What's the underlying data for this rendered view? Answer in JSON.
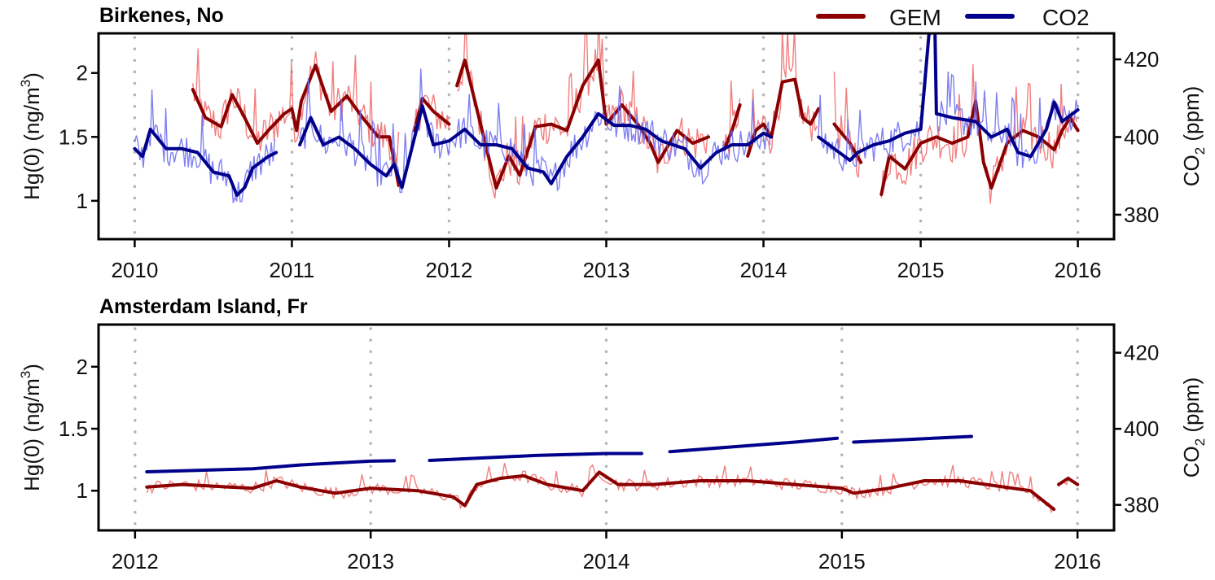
{
  "legend": {
    "gem": "GEM",
    "co2": "CO2",
    "gem_color": "#8b0000",
    "co2_color": "#00008b"
  },
  "chart_data": [
    {
      "type": "line",
      "title": "Birkenes, No",
      "ylabel": "Hg(0) (ng/m",
      "ylabel_sup": "3",
      "ylabel_end": ")",
      "y2label": "CO",
      "y2label_sub": "2",
      "y2label_end": " (ppm)",
      "xlim": [
        2009.77,
        2016.23
      ],
      "ylim": [
        0.7,
        2.31
      ],
      "y2lim": [
        373.7,
        426.7
      ],
      "x_ticks": [
        2010,
        2011,
        2012,
        2013,
        2014,
        2015,
        2016
      ],
      "x_tick_labels": [
        "2010",
        "2011",
        "2012",
        "2013",
        "2014",
        "2015",
        "2016"
      ],
      "y_ticks": [
        1,
        1.5,
        2
      ],
      "y_tick_labels": [
        "1",
        "1.5",
        "2"
      ],
      "y2_ticks": [
        380,
        400,
        420
      ],
      "y2_tick_labels": [
        "380",
        "400",
        "420"
      ],
      "grid": "vertical dotted at years",
      "legend_position": "top-right",
      "series": [
        {
          "name": "GEM",
          "axis": "left",
          "raw_variability": 0.16,
          "points": [
            [
              2010.37,
              1.87
            ],
            [
              2010.45,
              1.65
            ],
            [
              2010.55,
              1.58
            ],
            [
              2010.62,
              1.83
            ],
            [
              2010.7,
              1.65
            ],
            [
              2010.78,
              1.45
            ],
            [
              2010.85,
              1.55
            ],
            [
              2010.95,
              1.68
            ],
            [
              2011.0,
              1.72
            ],
            [
              2011.03,
              1.55
            ],
            [
              2011.06,
              1.78
            ],
            [
              2011.15,
              2.06
            ],
            [
              2011.25,
              1.7
            ],
            [
              2011.35,
              1.82
            ],
            [
              2011.45,
              1.65
            ],
            [
              2011.55,
              1.5
            ],
            [
              2011.62,
              1.5
            ],
            [
              2011.68,
              1.12
            ],
            null,
            [
              2011.78,
              1.55
            ],
            [
              2011.83,
              1.8
            ],
            [
              2011.9,
              1.7
            ],
            [
              2012.0,
              1.6
            ],
            null,
            [
              2012.05,
              1.9
            ],
            [
              2012.1,
              2.1
            ],
            [
              2012.2,
              1.6
            ],
            [
              2012.3,
              1.1
            ],
            [
              2012.38,
              1.35
            ],
            [
              2012.45,
              1.2
            ],
            [
              2012.55,
              1.58
            ],
            [
              2012.65,
              1.6
            ],
            [
              2012.75,
              1.55
            ],
            [
              2012.85,
              1.9
            ],
            [
              2012.95,
              2.1
            ],
            [
              2013.0,
              1.6
            ],
            [
              2013.1,
              1.75
            ],
            [
              2013.2,
              1.6
            ],
            [
              2013.28,
              1.45
            ],
            [
              2013.33,
              1.3
            ],
            [
              2013.45,
              1.55
            ],
            [
              2013.55,
              1.45
            ],
            [
              2013.65,
              1.5
            ],
            null,
            [
              2013.75,
              1.4
            ],
            [
              2013.8,
              1.55
            ],
            [
              2013.85,
              1.75
            ],
            null,
            [
              2013.9,
              1.35
            ],
            [
              2013.95,
              1.55
            ],
            [
              2014.0,
              1.6
            ],
            [
              2014.05,
              1.5
            ],
            [
              2014.12,
              1.93
            ],
            [
              2014.2,
              1.95
            ],
            [
              2014.25,
              1.65
            ],
            [
              2014.3,
              1.6
            ],
            [
              2014.35,
              1.72
            ],
            null,
            [
              2014.45,
              1.6
            ],
            [
              2014.55,
              1.45
            ],
            [
              2014.62,
              1.3
            ],
            null,
            [
              2014.75,
              1.05
            ],
            [
              2014.8,
              1.35
            ],
            [
              2014.9,
              1.25
            ],
            [
              2015.0,
              1.45
            ],
            [
              2015.1,
              1.5
            ],
            [
              2015.2,
              1.45
            ],
            [
              2015.3,
              1.5
            ],
            [
              2015.35,
              1.78
            ],
            [
              2015.4,
              1.3
            ],
            [
              2015.45,
              1.1
            ],
            [
              2015.55,
              1.45
            ],
            [
              2015.65,
              1.55
            ],
            [
              2015.75,
              1.5
            ],
            [
              2015.85,
              1.4
            ],
            [
              2015.9,
              1.55
            ],
            [
              2015.95,
              1.65
            ],
            [
              2016.0,
              1.55
            ]
          ]
        },
        {
          "name": "CO2",
          "axis": "right",
          "raw_variability": 4.5,
          "points": [
            [
              2010.0,
              397
            ],
            [
              2010.05,
              395
            ],
            [
              2010.1,
              402
            ],
            [
              2010.2,
              397
            ],
            [
              2010.3,
              397
            ],
            [
              2010.4,
              396
            ],
            [
              2010.5,
              391
            ],
            [
              2010.6,
              390
            ],
            [
              2010.65,
              385
            ],
            [
              2010.7,
              387
            ],
            [
              2010.75,
              392
            ],
            [
              2010.85,
              395
            ],
            [
              2010.9,
              396
            ],
            null,
            [
              2011.05,
              398
            ],
            [
              2011.12,
              405
            ],
            [
              2011.2,
              398
            ],
            [
              2011.3,
              400
            ],
            [
              2011.4,
              397
            ],
            [
              2011.5,
              393
            ],
            [
              2011.6,
              390
            ],
            [
              2011.65,
              393
            ],
            [
              2011.7,
              387
            ],
            [
              2011.75,
              395
            ],
            [
              2011.83,
              408
            ],
            [
              2011.9,
              398
            ],
            [
              2012.0,
              399
            ],
            [
              2012.1,
              402
            ],
            [
              2012.2,
              398
            ],
            [
              2012.3,
              398
            ],
            [
              2012.4,
              397
            ],
            [
              2012.5,
              392
            ],
            [
              2012.6,
              391
            ],
            [
              2012.65,
              388
            ],
            [
              2012.75,
              395
            ],
            [
              2012.85,
              400
            ],
            [
              2012.95,
              406
            ],
            [
              2013.05,
              403
            ],
            [
              2013.15,
              403
            ],
            [
              2013.25,
              402
            ],
            [
              2013.35,
              399
            ],
            [
              2013.5,
              397
            ],
            [
              2013.6,
              392
            ],
            [
              2013.7,
              396
            ],
            [
              2013.8,
              398
            ],
            [
              2013.9,
              398
            ],
            [
              2014.0,
              401
            ],
            [
              2014.05,
              400
            ],
            null,
            [
              2014.35,
              400
            ],
            [
              2014.45,
              397
            ],
            [
              2014.55,
              394
            ],
            [
              2014.6,
              396
            ],
            [
              2014.7,
              398
            ],
            [
              2014.8,
              399
            ],
            [
              2014.9,
              401
            ],
            [
              2015.0,
              402
            ],
            [
              2015.06,
              430
            ],
            [
              2015.09,
              430
            ],
            [
              2015.1,
              406
            ],
            [
              2015.2,
              405
            ],
            [
              2015.35,
              404
            ],
            [
              2015.45,
              400
            ],
            [
              2015.55,
              402
            ],
            [
              2015.62,
              396
            ],
            [
              2015.7,
              395
            ],
            [
              2015.8,
              402
            ],
            [
              2015.85,
              409
            ],
            [
              2015.9,
              404
            ],
            [
              2016.0,
              407
            ]
          ]
        }
      ]
    },
    {
      "type": "line",
      "title": "Amsterdam Island, Fr",
      "ylabel": "Hg(0) (ng/m",
      "ylabel_sup": "3",
      "ylabel_end": ")",
      "y2label": "CO",
      "y2label_sub": "2",
      "y2label_end": " (ppm)",
      "xlim": [
        2011.845,
        2016.155
      ],
      "ylim": [
        0.68,
        2.34
      ],
      "y2lim": [
        373.3,
        427.4
      ],
      "x_ticks": [
        2012,
        2013,
        2014,
        2015,
        2016
      ],
      "x_tick_labels": [
        "2012",
        "2013",
        "2014",
        "2015",
        "2016"
      ],
      "y_ticks": [
        1,
        1.5,
        2
      ],
      "y_tick_labels": [
        "1",
        "1.5",
        "2"
      ],
      "y2_ticks": [
        380,
        400,
        420
      ],
      "y2_tick_labels": [
        "380",
        "400",
        "420"
      ],
      "grid": "vertical dotted at years",
      "series": [
        {
          "name": "GEM",
          "axis": "left",
          "raw_variability": 0.05,
          "points": [
            [
              2012.05,
              1.03
            ],
            [
              2012.2,
              1.05
            ],
            [
              2012.4,
              1.03
            ],
            [
              2012.5,
              1.02
            ],
            [
              2012.6,
              1.08
            ],
            [
              2012.7,
              1.03
            ],
            [
              2012.85,
              0.98
            ],
            [
              2013.0,
              1.02
            ],
            [
              2013.2,
              1.0
            ],
            [
              2013.35,
              0.95
            ],
            [
              2013.4,
              0.88
            ],
            [
              2013.45,
              1.05
            ],
            [
              2013.55,
              1.1
            ],
            [
              2013.65,
              1.12
            ],
            [
              2013.75,
              1.05
            ],
            [
              2013.9,
              1.0
            ],
            [
              2013.97,
              1.15
            ],
            [
              2014.05,
              1.05
            ],
            [
              2014.2,
              1.05
            ],
            [
              2014.4,
              1.08
            ],
            [
              2014.6,
              1.08
            ],
            [
              2014.8,
              1.05
            ],
            [
              2015.0,
              1.02
            ],
            [
              2015.05,
              0.98
            ],
            [
              2015.2,
              1.02
            ],
            [
              2015.35,
              1.08
            ],
            [
              2015.5,
              1.08
            ],
            [
              2015.65,
              1.04
            ],
            [
              2015.8,
              1.0
            ],
            [
              2015.9,
              0.85
            ],
            null,
            [
              2015.92,
              1.05
            ],
            [
              2015.96,
              1.1
            ],
            [
              2016.0,
              1.05
            ]
          ]
        },
        {
          "name": "CO2",
          "axis": "right",
          "raw_variability": 0,
          "points": [
            [
              2012.05,
              388.7
            ],
            [
              2012.5,
              389.5
            ],
            [
              2012.7,
              390.5
            ],
            [
              2013.0,
              391.5
            ],
            [
              2013.1,
              391.6
            ],
            null,
            [
              2013.25,
              391.7
            ],
            [
              2013.7,
              393
            ],
            [
              2014.0,
              393.5
            ],
            [
              2014.15,
              393.5
            ],
            null,
            [
              2014.27,
              394
            ],
            [
              2014.8,
              396.5
            ],
            [
              2014.98,
              397.5
            ],
            null,
            [
              2015.05,
              396.5
            ],
            [
              2015.55,
              398
            ]
          ]
        }
      ]
    }
  ]
}
